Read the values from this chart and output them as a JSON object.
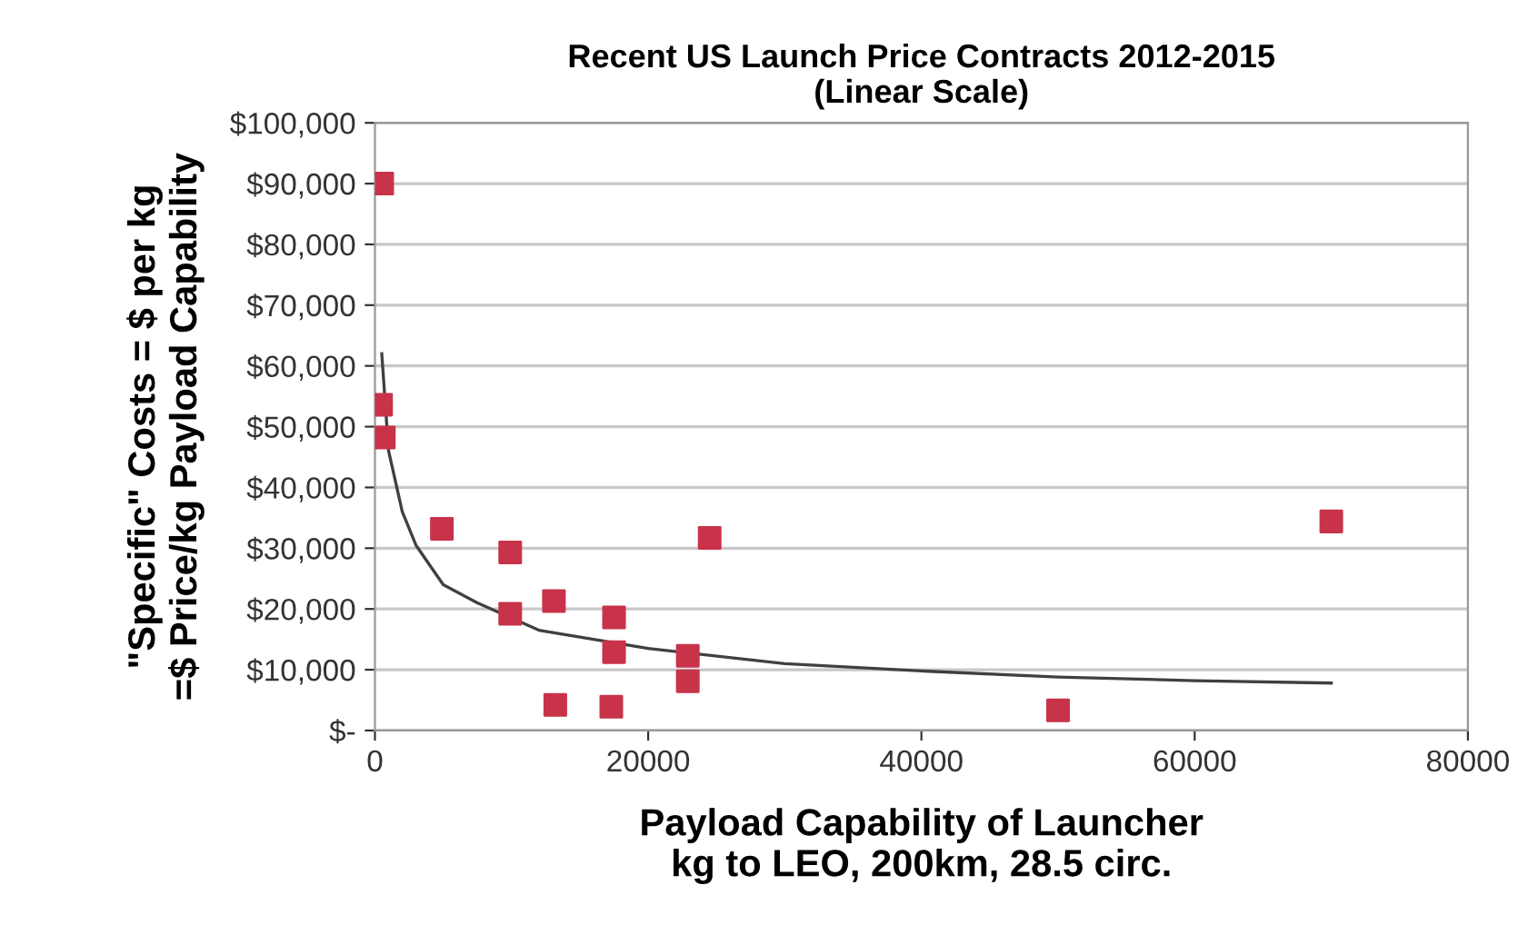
{
  "chart_data": {
    "type": "scatter",
    "title": "Recent US Launch Price Contracts 2012-2015\n(Linear Scale)",
    "xlabel": "Payload Capability of Launcher\nkg to LEO, 200km, 28.5 circ.",
    "ylabel": "\"Specific\" Costs = $ per kg\n=$ Price/kg Payload Capability",
    "series": [
      {
        "color": "#c8334a",
        "marker": "square",
        "x": [
          530,
          450,
          650,
          4900,
          9900,
          9900,
          13100,
          13200,
          17500,
          17500,
          17300,
          22900,
          22900,
          24500,
          50000,
          70000
        ],
        "values": [
          90000,
          53600,
          48200,
          33200,
          29300,
          19200,
          21300,
          4200,
          18600,
          12900,
          3900,
          12300,
          8100,
          31700,
          3300,
          34400
        ]
      },
      {
        "type": "line",
        "color": "#404040",
        "marker": "none",
        "x": [
          500,
          1000,
          2000,
          3000,
          5000,
          7500,
          12000,
          20000,
          30000,
          40000,
          50000,
          60000,
          70000
        ],
        "values": [
          62000,
          46000,
          36000,
          30500,
          24000,
          21000,
          16500,
          13500,
          11000,
          9800,
          8800,
          8200,
          7800
        ]
      }
    ],
    "xlim": [
      0,
      80000
    ],
    "xticks": [
      0,
      20000,
      40000,
      60000,
      80000
    ],
    "ylim": [
      0,
      100000
    ],
    "yticks": [
      {
        "value": 0,
        "label": "$-"
      },
      {
        "value": 10000,
        "label": "$10,000"
      },
      {
        "value": 20000,
        "label": "$20,000"
      },
      {
        "value": 30000,
        "label": "$30,000"
      },
      {
        "value": 40000,
        "label": "$40,000"
      },
      {
        "value": 50000,
        "label": "$50,000"
      },
      {
        "value": 60000,
        "label": "$60,000"
      },
      {
        "value": 70000,
        "label": "$70,000"
      },
      {
        "value": 80000,
        "label": "$80,000"
      },
      {
        "value": 90000,
        "label": "$90,000"
      },
      {
        "value": 100000,
        "label": "$100,000"
      }
    ],
    "grid": "y",
    "legend": false
  }
}
